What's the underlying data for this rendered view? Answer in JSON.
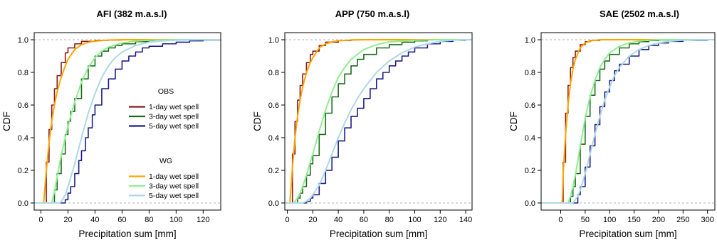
{
  "chart_data": [
    {
      "type": "line",
      "title": "AFI   (382 m.a.s.l)",
      "xlabel": "Precipitation sum [mm]",
      "ylabel": "CDF",
      "xlim": [
        -5,
        133
      ],
      "ylim": [
        0,
        1
      ],
      "x_ticks": [
        0,
        20,
        40,
        60,
        80,
        100,
        120
      ],
      "y_ticks": [
        0.0,
        0.2,
        0.4,
        0.6,
        0.8,
        1.0
      ],
      "reference_lines": [
        0,
        1
      ],
      "grid": false,
      "show_legend": true,
      "legend_position": "right-center",
      "legend": {
        "groups": [
          {
            "title": "OBS",
            "entries": [
              "1-day wet spell",
              "3-day wet spell",
              "5-day wet spell"
            ]
          },
          {
            "title": "WG",
            "entries": [
              "1-day wet spell",
              "3-day wet spell",
              "5-day wet spell"
            ]
          }
        ]
      },
      "series": [
        {
          "name": "1-day wet spell",
          "group": "OBS",
          "color": "#8B1A1A",
          "step": true,
          "x": [
            2,
            4,
            6,
            8,
            10,
            12,
            15,
            18,
            20,
            25,
            30,
            40,
            50,
            60,
            70
          ],
          "y": [
            0.0,
            0.25,
            0.45,
            0.6,
            0.7,
            0.78,
            0.86,
            0.92,
            0.95,
            0.975,
            0.99,
            0.996,
            0.998,
            0.999,
            1.0
          ]
        },
        {
          "name": "3-day wet spell",
          "group": "OBS",
          "color": "#1B6B1B",
          "step": true,
          "x": [
            8,
            10,
            12,
            15,
            18,
            20,
            22,
            25,
            30,
            35,
            40,
            45,
            50,
            55,
            60,
            70,
            80,
            90,
            100
          ],
          "y": [
            0.0,
            0.08,
            0.18,
            0.3,
            0.42,
            0.5,
            0.56,
            0.64,
            0.76,
            0.84,
            0.9,
            0.93,
            0.95,
            0.965,
            0.975,
            0.988,
            0.995,
            0.998,
            1.0
          ]
        },
        {
          "name": "5-day wet spell",
          "group": "OBS",
          "color": "#1C1C8C",
          "step": true,
          "x": [
            16,
            18,
            20,
            22,
            25,
            28,
            30,
            33,
            35,
            38,
            40,
            45,
            50,
            55,
            60,
            65,
            70,
            75,
            80,
            90,
            100,
            110,
            120,
            133
          ],
          "y": [
            0.0,
            0.02,
            0.06,
            0.1,
            0.18,
            0.26,
            0.32,
            0.4,
            0.46,
            0.54,
            0.6,
            0.7,
            0.76,
            0.82,
            0.87,
            0.9,
            0.925,
            0.95,
            0.96,
            0.975,
            0.985,
            0.993,
            0.998,
            1.0
          ]
        },
        {
          "name": "1-day wet spell",
          "group": "WG",
          "color": "#FFA500",
          "step": false,
          "x": [
            2,
            4,
            6,
            8,
            10,
            12,
            15,
            18,
            20,
            25,
            30,
            35,
            40,
            50,
            60
          ],
          "y": [
            0.0,
            0.2,
            0.37,
            0.5,
            0.6,
            0.68,
            0.77,
            0.84,
            0.88,
            0.94,
            0.97,
            0.984,
            0.992,
            0.998,
            1.0
          ]
        },
        {
          "name": "3-day wet spell",
          "group": "WG",
          "color": "#90EE90",
          "step": false,
          "x": [
            8,
            10,
            12,
            15,
            18,
            20,
            25,
            30,
            35,
            40,
            45,
            50,
            60,
            70,
            80,
            100
          ],
          "y": [
            0.0,
            0.07,
            0.16,
            0.29,
            0.4,
            0.47,
            0.62,
            0.74,
            0.83,
            0.89,
            0.93,
            0.955,
            0.98,
            0.992,
            0.997,
            1.0
          ]
        },
        {
          "name": "5-day wet spell",
          "group": "WG",
          "color": "#ADD8E6",
          "step": false,
          "x": [
            14,
            16,
            18,
            20,
            25,
            30,
            35,
            40,
            45,
            50,
            55,
            60,
            70,
            80,
            90,
            100,
            110,
            120
          ],
          "y": [
            0.0,
            0.02,
            0.05,
            0.1,
            0.24,
            0.4,
            0.55,
            0.67,
            0.77,
            0.84,
            0.89,
            0.925,
            0.965,
            0.985,
            0.993,
            0.997,
            0.999,
            1.0
          ]
        }
      ]
    },
    {
      "type": "line",
      "title": "APP   (750 m.a.s.l)",
      "xlabel": "Precipitation sum [mm]",
      "ylabel": "CDF",
      "xlim": [
        -2,
        145
      ],
      "ylim": [
        0,
        1
      ],
      "x_ticks": [
        0,
        20,
        40,
        60,
        80,
        100,
        120,
        140
      ],
      "y_ticks": [
        0.0,
        0.2,
        0.4,
        0.6,
        0.8,
        1.0
      ],
      "reference_lines": [
        0,
        1
      ],
      "grid": false,
      "show_legend": false,
      "series": [
        {
          "name": "1-day wet spell",
          "group": "OBS",
          "color": "#8B1A1A",
          "step": true,
          "x": [
            2,
            4,
            6,
            8,
            10,
            12,
            15,
            18,
            20,
            25,
            30,
            40,
            50,
            60
          ],
          "y": [
            0.0,
            0.3,
            0.5,
            0.63,
            0.72,
            0.79,
            0.86,
            0.91,
            0.93,
            0.965,
            0.985,
            0.995,
            0.999,
            1.0
          ]
        },
        {
          "name": "3-day wet spell",
          "group": "OBS",
          "color": "#1B6B1B",
          "step": true,
          "x": [
            5,
            8,
            10,
            12,
            15,
            18,
            20,
            25,
            30,
            35,
            40,
            45,
            50,
            55,
            60,
            70,
            80,
            90,
            100,
            110
          ],
          "y": [
            0.0,
            0.03,
            0.06,
            0.1,
            0.17,
            0.24,
            0.29,
            0.42,
            0.55,
            0.65,
            0.73,
            0.79,
            0.84,
            0.88,
            0.91,
            0.95,
            0.97,
            0.985,
            0.993,
            1.0
          ]
        },
        {
          "name": "5-day wet spell",
          "group": "OBS",
          "color": "#1C1C8C",
          "step": true,
          "x": [
            13,
            15,
            18,
            20,
            25,
            30,
            35,
            40,
            45,
            50,
            55,
            60,
            65,
            70,
            75,
            80,
            85,
            90,
            95,
            100,
            110,
            120,
            130,
            140
          ],
          "y": [
            0.0,
            0.01,
            0.03,
            0.05,
            0.12,
            0.2,
            0.28,
            0.38,
            0.46,
            0.53,
            0.58,
            0.64,
            0.7,
            0.76,
            0.8,
            0.84,
            0.87,
            0.9,
            0.925,
            0.95,
            0.975,
            0.99,
            0.997,
            1.0
          ]
        },
        {
          "name": "1-day wet spell",
          "group": "WG",
          "color": "#FFA500",
          "step": false,
          "x": [
            2,
            4,
            6,
            8,
            10,
            12,
            15,
            18,
            20,
            25,
            30,
            35,
            40,
            50,
            60
          ],
          "y": [
            0.0,
            0.22,
            0.4,
            0.53,
            0.63,
            0.71,
            0.8,
            0.86,
            0.89,
            0.95,
            0.975,
            0.987,
            0.994,
            0.998,
            1.0
          ]
        },
        {
          "name": "3-day wet spell",
          "group": "WG",
          "color": "#90EE90",
          "step": false,
          "x": [
            5,
            8,
            10,
            12,
            15,
            18,
            20,
            25,
            30,
            35,
            40,
            45,
            50,
            60,
            70,
            80,
            100,
            120
          ],
          "y": [
            0.0,
            0.03,
            0.06,
            0.1,
            0.17,
            0.25,
            0.3,
            0.44,
            0.57,
            0.68,
            0.77,
            0.83,
            0.88,
            0.94,
            0.97,
            0.987,
            0.997,
            1.0
          ]
        },
        {
          "name": "5-day wet spell",
          "group": "WG",
          "color": "#ADD8E6",
          "step": false,
          "x": [
            12,
            15,
            18,
            20,
            25,
            30,
            35,
            40,
            45,
            50,
            55,
            60,
            70,
            80,
            90,
            100,
            110,
            120,
            130,
            140
          ],
          "y": [
            0.0,
            0.01,
            0.03,
            0.05,
            0.11,
            0.2,
            0.3,
            0.4,
            0.49,
            0.57,
            0.64,
            0.7,
            0.8,
            0.87,
            0.92,
            0.955,
            0.975,
            0.99,
            0.997,
            1.0
          ]
        }
      ]
    },
    {
      "type": "line",
      "title": "SAE   (2502 m.a.s.l)",
      "xlabel": "Precipitation sum [mm]",
      "ylabel": "CDF",
      "xlim": [
        -40,
        315
      ],
      "ylim": [
        0,
        1
      ],
      "x_ticks": [
        0,
        50,
        100,
        150,
        200,
        250,
        300
      ],
      "y_ticks": [
        0.0,
        0.2,
        0.4,
        0.6,
        0.8,
        1.0
      ],
      "reference_lines": [
        0,
        1
      ],
      "grid": false,
      "show_legend": false,
      "series": [
        {
          "name": "1-day wet spell",
          "group": "OBS",
          "color": "#8B1A1A",
          "step": true,
          "x": [
            3,
            5,
            10,
            15,
            20,
            25,
            30,
            40,
            50,
            60,
            80
          ],
          "y": [
            0.0,
            0.25,
            0.55,
            0.72,
            0.83,
            0.89,
            0.93,
            0.97,
            0.988,
            0.996,
            1.0
          ]
        },
        {
          "name": "3-day wet spell",
          "group": "OBS",
          "color": "#1B6B1B",
          "step": true,
          "x": [
            15,
            20,
            25,
            30,
            40,
            50,
            60,
            70,
            80,
            90,
            100,
            120,
            140,
            160,
            180,
            200,
            220
          ],
          "y": [
            0.0,
            0.04,
            0.1,
            0.18,
            0.36,
            0.53,
            0.66,
            0.75,
            0.82,
            0.87,
            0.91,
            0.95,
            0.975,
            0.988,
            0.995,
            0.998,
            1.0
          ]
        },
        {
          "name": "5-day wet spell",
          "group": "OBS",
          "color": "#1C1C8C",
          "step": true,
          "x": [
            28,
            35,
            40,
            50,
            60,
            70,
            80,
            90,
            100,
            110,
            120,
            140,
            160,
            180,
            200,
            220,
            250,
            300
          ],
          "y": [
            0.0,
            0.05,
            0.1,
            0.22,
            0.35,
            0.48,
            0.59,
            0.68,
            0.75,
            0.81,
            0.85,
            0.9,
            0.94,
            0.965,
            0.98,
            0.99,
            0.997,
            1.0
          ]
        },
        {
          "name": "1-day wet spell",
          "group": "WG",
          "color": "#FFA500",
          "step": false,
          "x": [
            3,
            5,
            10,
            15,
            20,
            25,
            30,
            40,
            50,
            60,
            80
          ],
          "y": [
            0.0,
            0.18,
            0.42,
            0.6,
            0.73,
            0.82,
            0.88,
            0.95,
            0.98,
            0.993,
            1.0
          ]
        },
        {
          "name": "3-day wet spell",
          "group": "WG",
          "color": "#90EE90",
          "step": false,
          "x": [
            15,
            20,
            25,
            30,
            40,
            50,
            60,
            70,
            80,
            90,
            100,
            120,
            140,
            160,
            180,
            200
          ],
          "y": [
            0.0,
            0.04,
            0.1,
            0.17,
            0.35,
            0.52,
            0.65,
            0.75,
            0.83,
            0.88,
            0.92,
            0.96,
            0.98,
            0.992,
            0.997,
            1.0
          ]
        },
        {
          "name": "5-day wet spell",
          "group": "WG",
          "color": "#ADD8E6",
          "step": false,
          "x": [
            25,
            35,
            40,
            50,
            60,
            70,
            80,
            90,
            100,
            110,
            120,
            140,
            160,
            180,
            200,
            220,
            250,
            280
          ],
          "y": [
            0.0,
            0.04,
            0.08,
            0.18,
            0.3,
            0.42,
            0.53,
            0.63,
            0.71,
            0.78,
            0.83,
            0.9,
            0.94,
            0.965,
            0.98,
            0.99,
            0.997,
            1.0
          ]
        }
      ]
    }
  ]
}
